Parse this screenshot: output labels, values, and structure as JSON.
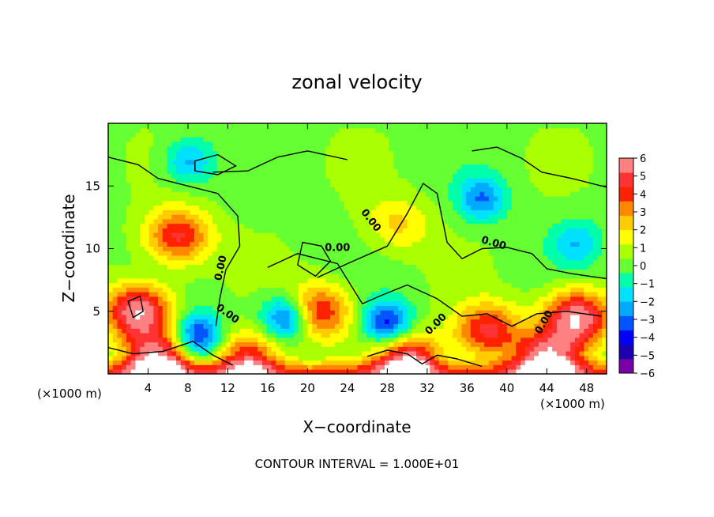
{
  "chart_data": {
    "type": "heatmap",
    "title": "zonal velocity",
    "xlabel": "X−coordinate",
    "ylabel": "Z−coordinate",
    "x_unit_left": "(×1000 m)",
    "x_unit_right": "(×1000 m)",
    "x_ticks": [
      4,
      8,
      12,
      16,
      20,
      24,
      28,
      32,
      36,
      40,
      44,
      48
    ],
    "y_ticks": [
      5,
      10,
      15
    ],
    "xlim": [
      0,
      50
    ],
    "ylim": [
      0,
      20
    ],
    "colorbar": {
      "ticks": [
        6,
        5,
        4,
        3,
        2,
        1,
        0,
        -1,
        -2,
        -3,
        -4,
        -5,
        -6
      ],
      "range": [
        -6,
        6
      ],
      "colors": [
        "#7a00aa",
        "#1a00b0",
        "#0000ff",
        "#0055ff",
        "#00aaff",
        "#00e0ff",
        "#00ffaa",
        "#66ff33",
        "#aaff00",
        "#ffff00",
        "#ffcc00",
        "#ff8800",
        "#ff2200",
        "#ff3333",
        "#ff8080"
      ],
      "tick_labels": [
        "6",
        "5",
        "4",
        "3",
        "2",
        "1",
        "0",
        "−1",
        "−2",
        "−3",
        "−4",
        "−5",
        "−6"
      ]
    },
    "contour_labels": [
      "0.00",
      "0.00",
      "0.00",
      "0.00",
      "0.00",
      "0.00",
      "0.00"
    ],
    "field_features": [
      {
        "type": "jet",
        "x": 7,
        "z": 11,
        "value": 4.5
      },
      {
        "type": "jet",
        "x": 3,
        "z": 5,
        "value": 6
      },
      {
        "type": "jet",
        "x": 21,
        "z": 5,
        "value": 4.5
      },
      {
        "type": "jet",
        "x": 38,
        "z": 3.5,
        "value": 4.5
      },
      {
        "type": "jet",
        "x": 47,
        "z": 4.5,
        "value": 6
      },
      {
        "type": "jet",
        "x": 5,
        "z": 1,
        "value": 6
      },
      {
        "type": "jet",
        "x": 14,
        "z": 1,
        "value": 5
      },
      {
        "type": "jet",
        "x": 30,
        "z": 1,
        "value": 6
      },
      {
        "type": "jet",
        "x": 44,
        "z": 1,
        "value": 6
      },
      {
        "type": "jet",
        "x": 29,
        "z": 12,
        "value": 2
      },
      {
        "type": "vortex",
        "x": 18,
        "z": 4.5,
        "value": -4.5
      },
      {
        "type": "vortex",
        "x": 9,
        "z": 3,
        "value": -4.5
      },
      {
        "type": "vortex",
        "x": 28,
        "z": 4,
        "value": -4.5
      },
      {
        "type": "vortex",
        "x": 37.5,
        "z": 14,
        "value": -3
      },
      {
        "type": "vortex",
        "x": 8,
        "z": 17,
        "value": -2.5
      },
      {
        "type": "vortex",
        "x": 47,
        "z": 10.5,
        "value": -2
      }
    ],
    "contour_interval_text": "CONTOUR INTERVAL = 1.000E+01"
  }
}
